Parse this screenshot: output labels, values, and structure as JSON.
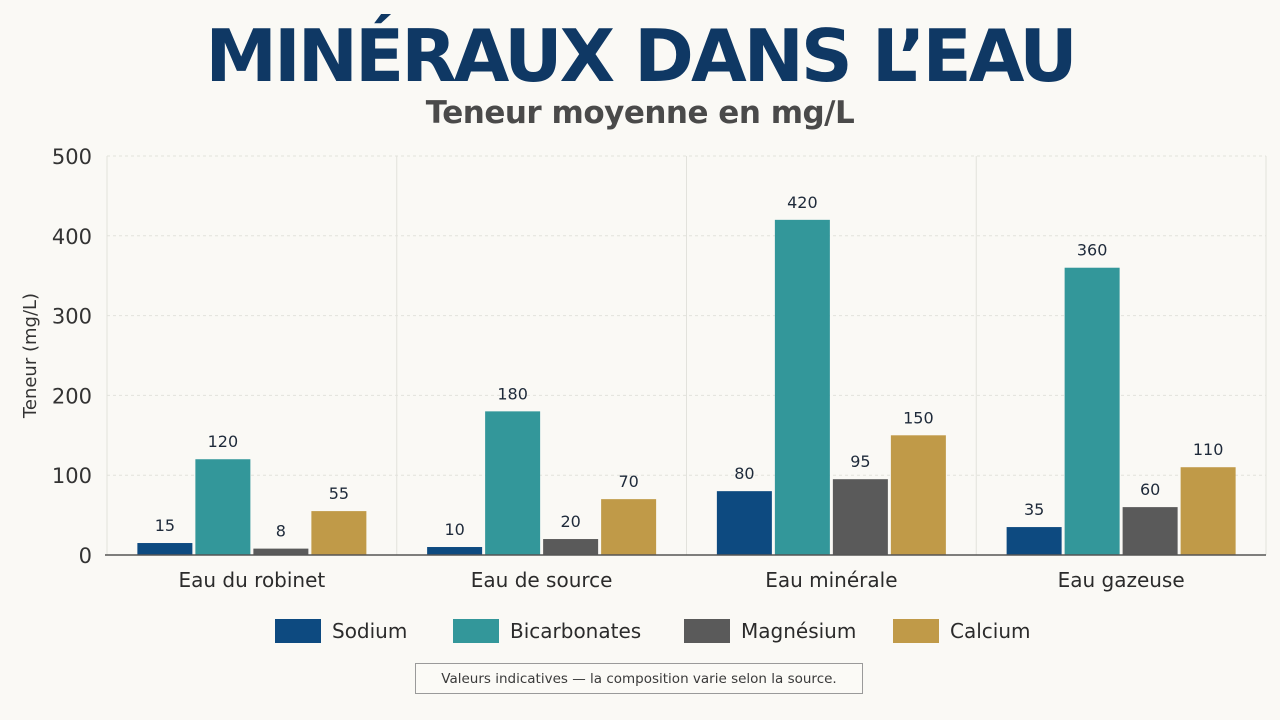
{
  "title": "MINÉRAUX DANS L’EAU",
  "subtitle": "Teneur moyenne en mg/L",
  "note": "Valeurs indicatives — la composition varie selon la source.",
  "chart_data": {
    "type": "bar",
    "title": "MINÉRAUX DANS L’EAU",
    "subtitle": "Teneur moyenne en mg/L",
    "xlabel": "",
    "ylabel": "Teneur (mg/L)",
    "ylim": [
      0,
      500
    ],
    "yticks": [
      0,
      100,
      200,
      300,
      400,
      500
    ],
    "grid": true,
    "legend_position": "bottom",
    "categories": [
      "Eau du robinet",
      "Eau de source",
      "Eau minérale",
      "Eau gazeuse"
    ],
    "series": [
      {
        "name": "Sodium",
        "color": "#0d4a80",
        "values": [
          15,
          10,
          80,
          35
        ]
      },
      {
        "name": "Bicarbonates",
        "color": "#33979a",
        "values": [
          120,
          180,
          420,
          360
        ]
      },
      {
        "name": "Magnésium",
        "color": "#5a5a5a",
        "values": [
          8,
          20,
          95,
          60
        ]
      },
      {
        "name": "Calcium",
        "color": "#c09a48",
        "values": [
          55,
          70,
          150,
          110
        ]
      }
    ]
  }
}
